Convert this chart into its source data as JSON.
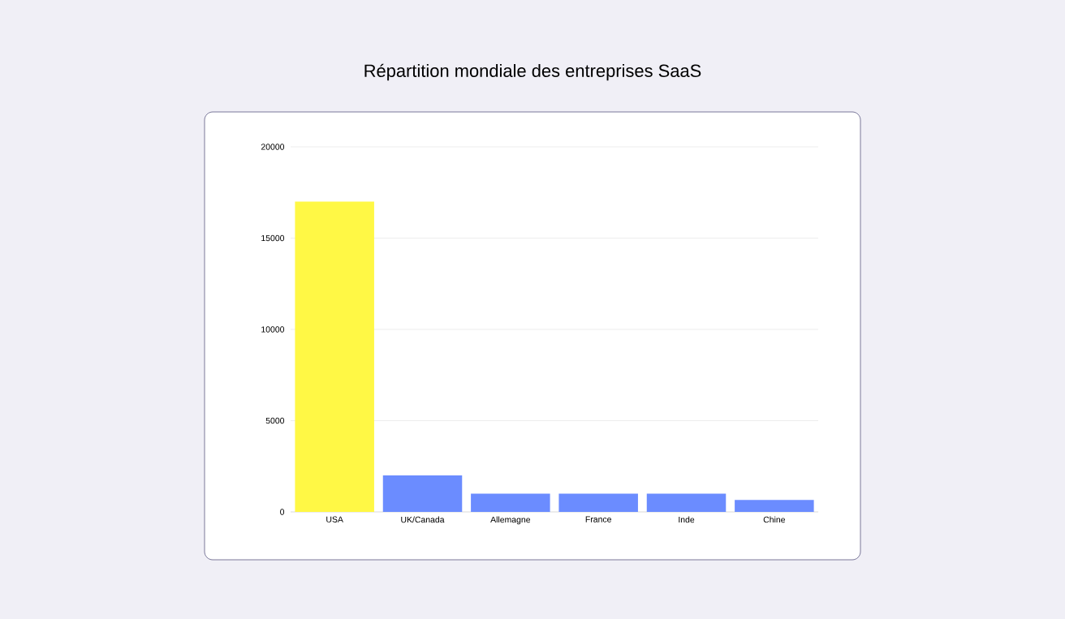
{
  "chart_data": {
    "type": "bar",
    "title": "Répartition mondiale des entreprises SaaS",
    "categories": [
      "USA",
      "UK/Canada",
      "Allemagne",
      "France",
      "Inde",
      "Chine"
    ],
    "values": [
      17000,
      2000,
      1000,
      1000,
      1000,
      650
    ],
    "colors": [
      "#fff845",
      "#6b8cff",
      "#6b8cff",
      "#6b8cff",
      "#6b8cff",
      "#6b8cff"
    ],
    "ylim": [
      0,
      20000
    ],
    "yticks": [
      0,
      5000,
      10000,
      15000,
      20000
    ],
    "grid": "y"
  }
}
